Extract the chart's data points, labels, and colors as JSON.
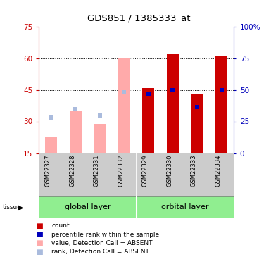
{
  "title": "GDS851 / 1385333_at",
  "samples": [
    "GSM22327",
    "GSM22328",
    "GSM22331",
    "GSM22332",
    "GSM22329",
    "GSM22330",
    "GSM22333",
    "GSM22334"
  ],
  "absent": [
    true,
    true,
    true,
    true,
    false,
    false,
    false,
    false
  ],
  "pink_value": [
    23,
    35,
    29,
    60,
    0,
    0,
    0,
    0
  ],
  "lightblue_rank": [
    32,
    36,
    33,
    44,
    0,
    0,
    0,
    0
  ],
  "red_count": [
    0,
    0,
    0,
    0,
    46,
    62,
    43,
    61
  ],
  "blue_rank": [
    0,
    0,
    0,
    0,
    43,
    45,
    37,
    45
  ],
  "ylim_left": [
    15,
    75
  ],
  "ylim_right": [
    0,
    100
  ],
  "yticks_left": [
    15,
    30,
    45,
    60,
    75
  ],
  "yticks_right": [
    0,
    25,
    50,
    75,
    100
  ],
  "colors": {
    "red": "#CC0000",
    "blue": "#0000BB",
    "pink": "#FFAAAA",
    "lightblue": "#AABBDD",
    "axis_left": "#CC0000",
    "axis_right": "#0000BB"
  },
  "bar_width": 0.5,
  "group_divider": 3.5,
  "legend_items": [
    {
      "label": "count",
      "color": "#CC0000"
    },
    {
      "label": "percentile rank within the sample",
      "color": "#0000BB"
    },
    {
      "label": "value, Detection Call = ABSENT",
      "color": "#FFAAAA"
    },
    {
      "label": "rank, Detection Call = ABSENT",
      "color": "#AABBDD"
    }
  ]
}
